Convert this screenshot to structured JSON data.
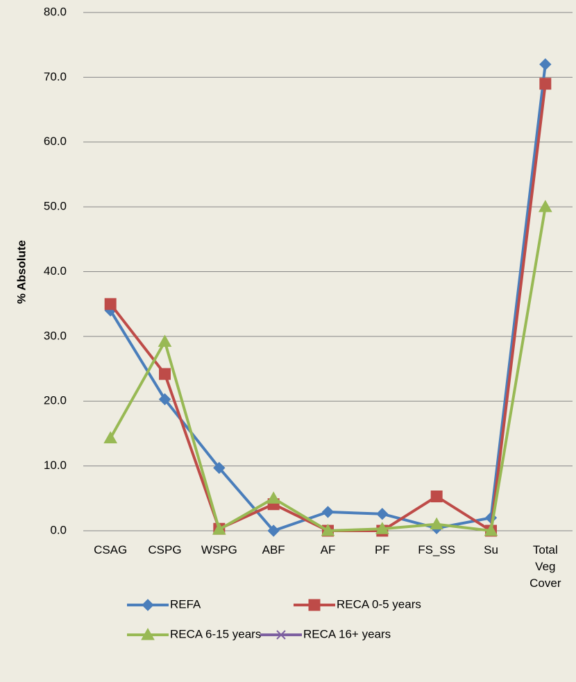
{
  "chart_data": {
    "type": "line",
    "y_axis_label": "% Absolute",
    "categories": [
      "CSAG",
      "CSPG",
      "WSPG",
      "ABF",
      "AF",
      "PF",
      "FS_SS",
      "Su",
      "Total Veg Cover"
    ],
    "series": [
      {
        "name": "REFA",
        "color": "#4a7ebb",
        "marker": "diamond",
        "values": [
          34.0,
          20.3,
          9.7,
          0.0,
          2.9,
          2.6,
          0.4,
          2.0,
          72.0
        ]
      },
      {
        "name": "RECA 0-5 years",
        "color": "#be4b48",
        "marker": "square",
        "values": [
          35.0,
          24.2,
          0.3,
          4.1,
          0.0,
          0.0,
          5.3,
          0.0,
          69.0
        ]
      },
      {
        "name": "RECA 6-15 years",
        "color": "#98b954",
        "marker": "triangle",
        "values": [
          14.3,
          29.2,
          0.2,
          5.0,
          0.0,
          0.3,
          1.0,
          0.0,
          50.0
        ]
      },
      {
        "name": "RECA 16+ years",
        "color": "#7d60a0",
        "marker": "x",
        "values": [
          null,
          null,
          null,
          null,
          null,
          null,
          null,
          null,
          null
        ]
      }
    ],
    "ylim": [
      0,
      80
    ],
    "yticks": [
      {
        "value": 0,
        "label": "0.0"
      },
      {
        "value": 10,
        "label": "10.0"
      },
      {
        "value": 20,
        "label": "20.0"
      },
      {
        "value": 30,
        "label": "30.0"
      },
      {
        "value": 40,
        "label": "40.0"
      },
      {
        "value": 50,
        "label": "50.0"
      },
      {
        "value": 60,
        "label": "60.0"
      },
      {
        "value": 70,
        "label": "70.0"
      },
      {
        "value": 80,
        "label": "80.0"
      }
    ],
    "grid": true,
    "legend": "bottom"
  }
}
